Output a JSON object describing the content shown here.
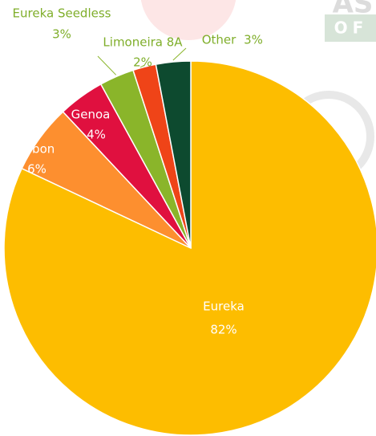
{
  "chart_data": {
    "type": "pie",
    "categories": [
      "Eureka",
      "Lisbon",
      "Genoa",
      "Eureka Seedless",
      "Limoneira 8A",
      "Other"
    ],
    "values": [
      82,
      6,
      4,
      3,
      2,
      3
    ],
    "value_labels": [
      "82%",
      "6%",
      "4%",
      "3%",
      "2%",
      "3%"
    ],
    "colors": [
      "#fdbd00",
      "#fd8f2f",
      "#e0103f",
      "#8ab52a",
      "#ef4418",
      "#0d4a2f"
    ]
  },
  "logo_text": [
    "AS",
    "OF"
  ]
}
